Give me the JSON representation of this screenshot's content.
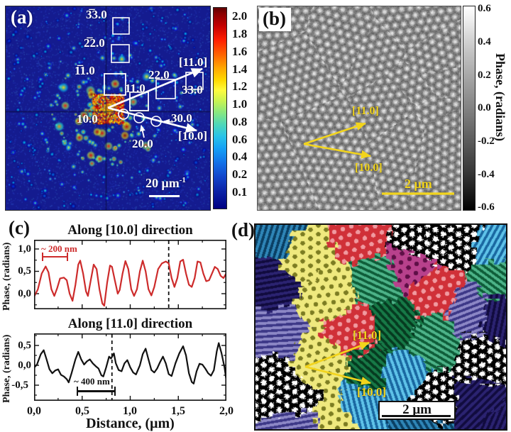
{
  "figure": {
    "panel_a": {
      "tag": "(a)",
      "spots": {
        "m33": "3̅3.0",
        "m22": "2̅2.0",
        "m11": "1̅1.0",
        "p11": "11.0",
        "p22": "22.0",
        "p33": "33.0",
        "p10": "10.0",
        "p20": "20.0",
        "p30": "30.0"
      },
      "dir_11": "[11.0]",
      "dir_10": "[10.0]",
      "scalebar_value": "20 μm",
      "scalebar_sup": "-1",
      "colorbar_ticks": [
        "2.0",
        "1.8",
        "1.6",
        "1.4",
        "1.2",
        "1.0",
        "0.8",
        "0.6",
        "0.4",
        "0.2",
        "0.1"
      ]
    },
    "panel_b": {
      "tag": "(b)",
      "dir_11": "[11.0]",
      "dir_10": "[10.0]",
      "scalebar": "2 μm",
      "colorbar_label": "Phase, (radians)",
      "colorbar_ticks": [
        "0.6",
        "0.4",
        "0.2",
        "0.0",
        "-0.2",
        "-0.4",
        "-0.6"
      ]
    },
    "panel_c": {
      "tag": "(c)",
      "xlabel": "Distance, (μm)",
      "x_ticks": [
        "0,0",
        "0,5",
        "1,0",
        "1,5",
        "2,0"
      ],
      "top": {
        "ylabel": "Phase, (radians)",
        "y_ticks": [
          "1,0",
          "0,5",
          "0,0"
        ],
        "annotation": "~ 200 nm"
      },
      "bottom": {
        "ylabel": "Phase, (radians)",
        "y_ticks": [
          "0,5",
          "0,0",
          "-0,5"
        ],
        "annotation": "~ 400 nm"
      }
    },
    "panel_d": {
      "tag": "(d)",
      "dir_11": "[11.0]",
      "dir_10": "[10.0]",
      "scalebar": "2 μm"
    },
    "colors": {
      "accent_red": "#cd2b2b",
      "annotation_yellow": "#f2d41c",
      "annotation_white": "#ffffff",
      "fft_background_blue": "#141b8f"
    }
  },
  "chart_data": [
    {
      "type": "line",
      "title": "Along [10.0] direction",
      "xlabel": "Distance, (μm)",
      "ylabel": "Phase, (radians)",
      "xlim": [
        0,
        2.0
      ],
      "ylim": [
        -0.35,
        1.2
      ],
      "x_tick_values": [
        0,
        0.5,
        1.0,
        1.5,
        2.0
      ],
      "y_tick_values": [
        0.0,
        0.5,
        1.0
      ],
      "color": "#cd2b2b",
      "dashed_line_x": 1.4,
      "period_annotation": "~ 200 nm",
      "grid": false,
      "points": [
        [
          0,
          -0.07
        ],
        [
          0.04,
          0.1
        ],
        [
          0.08,
          0.45
        ],
        [
          0.12,
          0.61
        ],
        [
          0.15,
          0.48
        ],
        [
          0.18,
          0.1
        ],
        [
          0.21,
          -0.05
        ],
        [
          0.24,
          0.12
        ],
        [
          0.27,
          0.34
        ],
        [
          0.31,
          0.36
        ],
        [
          0.34,
          0.3
        ],
        [
          0.37,
          0.0
        ],
        [
          0.4,
          -0.16
        ],
        [
          0.43,
          0.2
        ],
        [
          0.46,
          0.65
        ],
        [
          0.48,
          0.74
        ],
        [
          0.51,
          0.45
        ],
        [
          0.54,
          0.05
        ],
        [
          0.56,
          -0.05
        ],
        [
          0.59,
          0.3
        ],
        [
          0.62,
          0.65
        ],
        [
          0.65,
          0.55
        ],
        [
          0.68,
          0.1
        ],
        [
          0.71,
          -0.22
        ],
        [
          0.73,
          -0.27
        ],
        [
          0.76,
          0.25
        ],
        [
          0.79,
          0.63
        ],
        [
          0.81,
          0.6
        ],
        [
          0.84,
          0.3
        ],
        [
          0.87,
          0.0
        ],
        [
          0.89,
          0.08
        ],
        [
          0.92,
          0.45
        ],
        [
          0.95,
          0.73
        ],
        [
          0.98,
          0.55
        ],
        [
          1.01,
          0.1
        ],
        [
          1.04,
          -0.05
        ],
        [
          1.07,
          0.1
        ],
        [
          1.1,
          0.5
        ],
        [
          1.13,
          0.74
        ],
        [
          1.16,
          0.5
        ],
        [
          1.19,
          0.1
        ],
        [
          1.22,
          -0.04
        ],
        [
          1.25,
          0.15
        ],
        [
          1.29,
          0.55
        ],
        [
          1.33,
          0.68
        ],
        [
          1.37,
          0.72
        ],
        [
          1.4,
          0.68
        ],
        [
          1.43,
          0.35
        ],
        [
          1.46,
          0.15
        ],
        [
          1.49,
          0.35
        ],
        [
          1.52,
          0.72
        ],
        [
          1.55,
          0.76
        ],
        [
          1.58,
          0.45
        ],
        [
          1.61,
          0.2
        ],
        [
          1.64,
          0.15
        ],
        [
          1.67,
          0.35
        ],
        [
          1.7,
          0.72
        ],
        [
          1.73,
          0.7
        ],
        [
          1.76,
          0.45
        ],
        [
          1.79,
          0.28
        ],
        [
          1.82,
          0.3
        ],
        [
          1.85,
          0.45
        ],
        [
          1.88,
          0.6
        ],
        [
          1.91,
          0.55
        ],
        [
          1.94,
          0.4
        ],
        [
          1.97,
          0.35
        ],
        [
          2.0,
          0.46
        ]
      ]
    },
    {
      "type": "line",
      "title": "Along [11.0] direction",
      "xlabel": "Distance, (μm)",
      "ylabel": "Phase, (radians)",
      "xlim": [
        0,
        2.0
      ],
      "ylim": [
        -0.9,
        0.8
      ],
      "x_tick_values": [
        0,
        0.5,
        1.0,
        1.5,
        2.0
      ],
      "y_tick_values": [
        -0.5,
        0.0,
        0.5
      ],
      "color": "#111111",
      "dashed_line_x": 0.81,
      "period_annotation": "~ 400 nm",
      "grid": false,
      "points": [
        [
          0,
          -0.06
        ],
        [
          0.03,
          0.02
        ],
        [
          0.07,
          0.28
        ],
        [
          0.1,
          0.38
        ],
        [
          0.13,
          0.15
        ],
        [
          0.16,
          -0.1
        ],
        [
          0.19,
          -0.2
        ],
        [
          0.22,
          -0.13
        ],
        [
          0.25,
          -0.1
        ],
        [
          0.28,
          -0.24
        ],
        [
          0.31,
          -0.28
        ],
        [
          0.34,
          -0.35
        ],
        [
          0.36,
          -0.43
        ],
        [
          0.39,
          -0.2
        ],
        [
          0.43,
          0.15
        ],
        [
          0.46,
          0.34
        ],
        [
          0.49,
          0.15
        ],
        [
          0.52,
          0.02
        ],
        [
          0.55,
          0.1
        ],
        [
          0.58,
          0.15
        ],
        [
          0.61,
          0.05
        ],
        [
          0.64,
          -0.02
        ],
        [
          0.67,
          -0.08
        ],
        [
          0.7,
          -0.25
        ],
        [
          0.72,
          -0.28
        ],
        [
          0.75,
          -0.05
        ],
        [
          0.78,
          0.22
        ],
        [
          0.8,
          0.17
        ],
        [
          0.83,
          0.3
        ],
        [
          0.85,
          0.05
        ],
        [
          0.88,
          -0.12
        ],
        [
          0.91,
          -0.15
        ],
        [
          0.94,
          0.05
        ],
        [
          0.97,
          0.13
        ],
        [
          1.0,
          -0.05
        ],
        [
          1.03,
          -0.18
        ],
        [
          1.06,
          -0.23
        ],
        [
          1.1,
          0.0
        ],
        [
          1.13,
          0.28
        ],
        [
          1.16,
          0.42
        ],
        [
          1.19,
          0.15
        ],
        [
          1.22,
          -0.12
        ],
        [
          1.25,
          -0.18
        ],
        [
          1.28,
          -0.08
        ],
        [
          1.31,
          0.08
        ],
        [
          1.34,
          0.22
        ],
        [
          1.37,
          0.05
        ],
        [
          1.4,
          -0.22
        ],
        [
          1.43,
          -0.27
        ],
        [
          1.47,
          0.05
        ],
        [
          1.51,
          0.3
        ],
        [
          1.55,
          0.48
        ],
        [
          1.58,
          0.25
        ],
        [
          1.61,
          -0.2
        ],
        [
          1.64,
          -0.42
        ],
        [
          1.66,
          -0.46
        ],
        [
          1.69,
          -0.15
        ],
        [
          1.72,
          0.04
        ],
        [
          1.75,
          0.02
        ],
        [
          1.78,
          -0.08
        ],
        [
          1.81,
          -0.2
        ],
        [
          1.84,
          -0.26
        ],
        [
          1.87,
          -0.12
        ],
        [
          1.9,
          0.35
        ],
        [
          1.92,
          0.56
        ],
        [
          1.95,
          0.3
        ],
        [
          1.98,
          -0.05
        ],
        [
          2.0,
          -0.39
        ]
      ]
    }
  ]
}
